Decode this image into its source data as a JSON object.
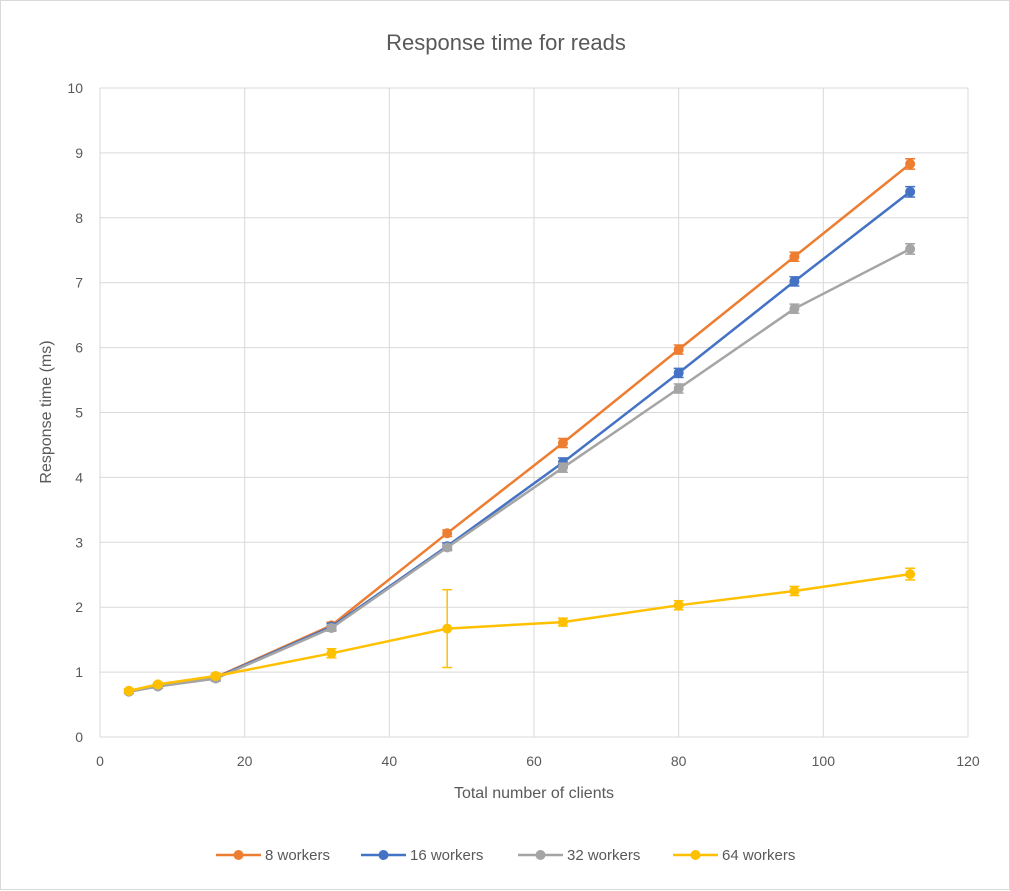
{
  "chart_data": {
    "type": "line",
    "title": "Response time for reads",
    "xlabel": "Total number of clients",
    "ylabel": "Response time (ms)",
    "xlim": [
      0,
      120
    ],
    "ylim": [
      0,
      10
    ],
    "xticks": [
      0,
      20,
      40,
      60,
      80,
      100,
      120
    ],
    "yticks": [
      0,
      1,
      2,
      3,
      4,
      5,
      6,
      7,
      8,
      9,
      10
    ],
    "grid": true,
    "legend_position": "bottom",
    "error_bars": true,
    "series": [
      {
        "name": "8 workers",
        "color": "#ED7D31",
        "x": [
          4,
          8,
          16,
          32,
          48,
          64,
          80,
          96,
          112
        ],
        "y": [
          0.71,
          0.79,
          0.92,
          1.72,
          3.14,
          4.53,
          5.97,
          7.4,
          8.83
        ],
        "err": [
          0.03,
          0.03,
          0.04,
          0.05,
          0.05,
          0.07,
          0.07,
          0.07,
          0.08
        ]
      },
      {
        "name": "16 workers",
        "color": "#4472C4",
        "x": [
          4,
          8,
          16,
          32,
          48,
          64,
          80,
          96,
          112
        ],
        "y": [
          0.7,
          0.78,
          0.91,
          1.7,
          2.94,
          4.23,
          5.61,
          7.02,
          8.4
        ],
        "err": [
          0.03,
          0.03,
          0.04,
          0.05,
          0.05,
          0.07,
          0.07,
          0.07,
          0.08
        ]
      },
      {
        "name": "32 workers",
        "color": "#A5A5A5",
        "x": [
          4,
          8,
          16,
          32,
          48,
          64,
          80,
          96,
          112
        ],
        "y": [
          0.7,
          0.78,
          0.9,
          1.68,
          2.92,
          4.15,
          5.37,
          6.6,
          7.52
        ],
        "err": [
          0.03,
          0.03,
          0.04,
          0.05,
          0.05,
          0.07,
          0.07,
          0.07,
          0.08
        ]
      },
      {
        "name": "64 workers",
        "color": "#FFC000",
        "x": [
          4,
          8,
          16,
          32,
          48,
          64,
          80,
          96,
          112
        ],
        "y": [
          0.71,
          0.81,
          0.94,
          1.29,
          1.67,
          1.77,
          2.03,
          2.25,
          2.51
        ],
        "err": [
          0.03,
          0.03,
          0.04,
          0.07,
          0.6,
          0.06,
          0.07,
          0.07,
          0.09
        ]
      }
    ]
  }
}
